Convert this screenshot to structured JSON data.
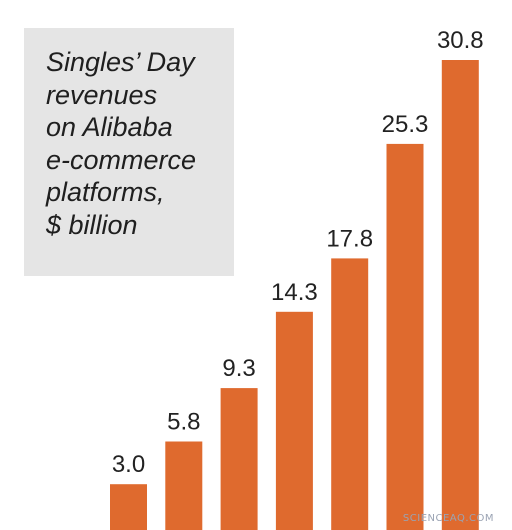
{
  "chart_data": {
    "type": "bar",
    "title_lines": [
      "Singles’ Day",
      "revenues",
      "on Alibaba",
      "e-commerce",
      "platforms,",
      "$ billion"
    ],
    "values": [
      3.0,
      5.8,
      9.3,
      14.3,
      17.8,
      25.3,
      30.8
    ],
    "value_labels": [
      "3.0",
      "5.8",
      "9.3",
      "14.3",
      "17.8",
      "25.3",
      "30.8"
    ],
    "bar_color": "#df6a2e",
    "ylim": [
      0,
      30.8
    ]
  },
  "watermark": "SCIENCEAQ.COM"
}
